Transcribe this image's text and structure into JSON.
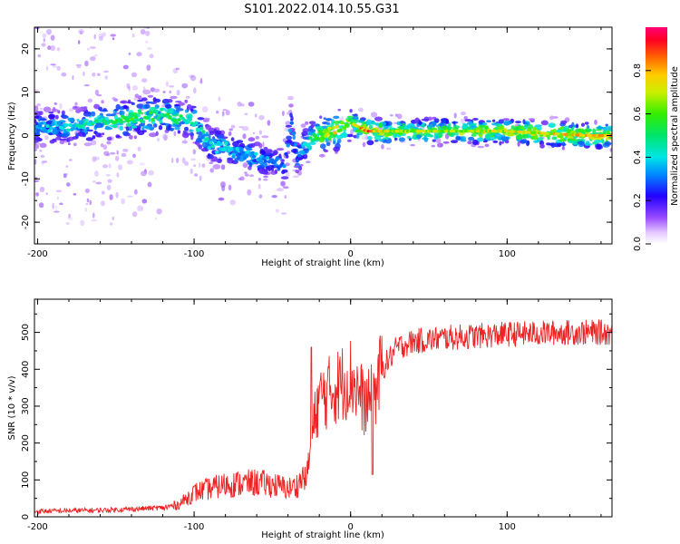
{
  "title": "S101.2022.014.10.55.G31",
  "chart_data": [
    {
      "type": "heatmap",
      "xlabel": "Height of straight line (km)",
      "ylabel": "Frequency (Hz)",
      "xlim": [
        -202,
        167
      ],
      "ylim": [
        -25,
        25
      ],
      "xticks": [
        -200,
        -100,
        0,
        100
      ],
      "yticks": [
        -20,
        -10,
        0,
        10,
        20
      ],
      "colorbar": {
        "label": "Normalized spectral amplitude",
        "range": [
          0,
          1
        ],
        "ticks": [
          "0.0",
          "0.2",
          "0.4",
          "0.6",
          "0.8"
        ],
        "tick_values": [
          0,
          0.2,
          0.4,
          0.6,
          0.8
        ],
        "colormap": "rainbow (white-purple-blue-cyan-green-yellow-red-magenta)"
      },
      "ridge": {
        "x": [
          -200,
          -180,
          -160,
          -140,
          -120,
          -100,
          -90,
          -80,
          -70,
          -60,
          -50,
          -42,
          -38,
          -34,
          -30,
          -20,
          -10,
          0,
          10,
          20,
          50,
          100,
          150,
          167
        ],
        "y": [
          2,
          2,
          3,
          4,
          5,
          3,
          -2,
          -3,
          -4,
          -5,
          -6,
          -7,
          4,
          -6,
          -2,
          0,
          1,
          3,
          1,
          1,
          1,
          1,
          0,
          0
        ],
        "amplitude": [
          0.35,
          0.4,
          0.45,
          0.55,
          0.5,
          0.45,
          0.4,
          0.4,
          0.35,
          0.35,
          0.3,
          0.3,
          0.3,
          0.3,
          0.4,
          0.6,
          0.7,
          0.6,
          0.85,
          0.7,
          0.65,
          0.7,
          0.75,
          0.8
        ]
      }
    },
    {
      "type": "line",
      "xlabel": "Height of straight line (km)",
      "ylabel": "SNR (10 * v/v)",
      "xlim": [
        -202,
        167
      ],
      "ylim": [
        0,
        590
      ],
      "xticks": [
        -200,
        -100,
        0,
        100
      ],
      "yticks": [
        0,
        100,
        200,
        300,
        400,
        500
      ],
      "series_color": "#ee2222",
      "trend": {
        "x": [
          -202,
          -160,
          -140,
          -120,
          -110,
          -100,
          -80,
          -60,
          -50,
          -40,
          -35,
          -28,
          -22,
          -20,
          -10,
          0,
          10,
          15,
          20,
          25,
          30,
          40,
          60,
          100,
          140,
          167
        ],
        "y": [
          12,
          15,
          18,
          22,
          30,
          60,
          80,
          85,
          80,
          70,
          75,
          110,
          290,
          320,
          350,
          380,
          300,
          330,
          400,
          430,
          460,
          475,
          485,
          495,
          500,
          500
        ]
      }
    }
  ]
}
